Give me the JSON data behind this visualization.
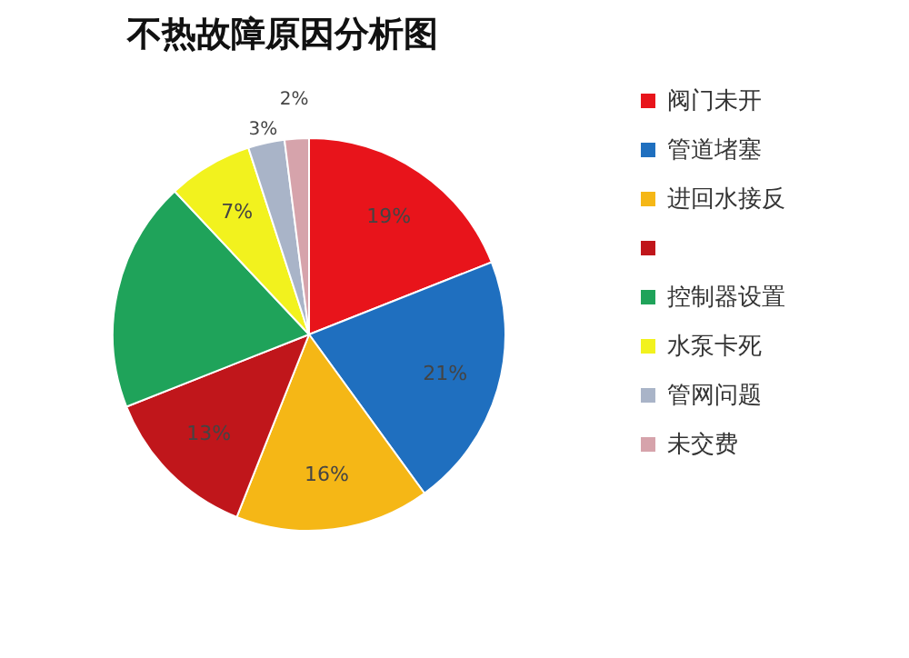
{
  "chart_data": {
    "type": "pie",
    "title": "不热故障原因分析图",
    "categories": [
      "阀门未开",
      "管道堵塞",
      "进回水接反",
      null,
      "控制器设置",
      "水泵卡死",
      "管网问题",
      "未交费"
    ],
    "values": [
      19,
      21,
      16,
      13,
      19,
      7,
      3,
      2
    ],
    "colors": [
      "#e8141b",
      "#1f6fbf",
      "#f5b716",
      "#c0161b",
      "#1fa35a",
      "#f2f21e",
      "#a9b4c8",
      "#d6a3ab"
    ],
    "value_labels": [
      "19%",
      "21%",
      "16%",
      "13%",
      null,
      "7%",
      "3%",
      "2%"
    ],
    "legend": "right"
  }
}
